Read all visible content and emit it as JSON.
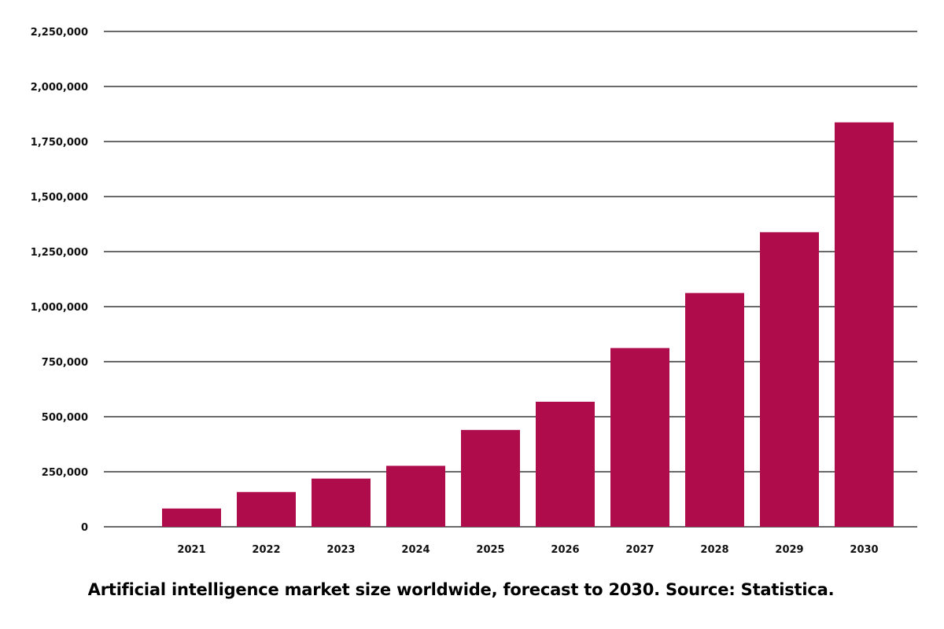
{
  "chart_data": {
    "type": "bar",
    "title": "",
    "xlabel": "",
    "ylabel": "",
    "categories": [
      "2021",
      "2022",
      "2023",
      "2024",
      "2025",
      "2026",
      "2027",
      "2028",
      "2029",
      "2030"
    ],
    "values": [
      83000,
      158000,
      219000,
      277000,
      440000,
      568000,
      812000,
      1062000,
      1338000,
      1837000
    ],
    "ylim": [
      0,
      2250000
    ],
    "yticks": [
      0,
      250000,
      500000,
      750000,
      1000000,
      1250000,
      1500000,
      1750000,
      2000000,
      2250000
    ],
    "ytick_labels": [
      "0",
      "250,000",
      "500,000",
      "750,000",
      "1,000,000",
      "1,250,000",
      "1,500,000",
      "1,750,000",
      "2,000,000",
      "2,250,000"
    ],
    "grid": true,
    "bar_color": "#AE0C4B"
  },
  "caption": "Artificial intelligence market size worldwide, forecast to 2030. Source: Statistica."
}
